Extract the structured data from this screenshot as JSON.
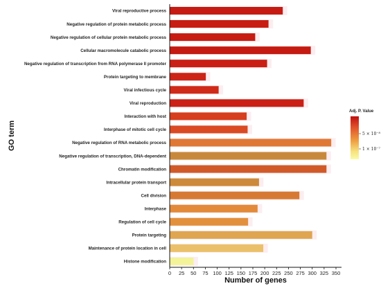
{
  "chart_data": {
    "type": "bar",
    "orientation": "horizontal",
    "title": "",
    "xlabel": "Number of genes",
    "ylabel": "GO term",
    "xlim": [
      0,
      350
    ],
    "xticks": [
      "0",
      "25",
      "50",
      "75",
      "100",
      "125",
      "150",
      "175",
      "200",
      "225",
      "250",
      "275",
      "300",
      "325",
      "350"
    ],
    "grid": false,
    "categories": [
      "Viral reproductive process",
      "Negative regulation of protein metabolic process",
      "Negative regulation of cellular protein metabolic process",
      "Cellular macromolecule catabolic process",
      "Negative regulation of transcription from RNA polymerase II promoter",
      "Protein targeting to membrane",
      "Viral infectious cycle",
      "Viral reproduction",
      "Interaction with host",
      "Interphase of mitotic cell cycle",
      "Negative regulation of RNA metabolic process",
      "Negative regulation of transcription, DNA-dependent",
      "Chromatin modification",
      "Intracellular protein transport",
      "Cell division",
      "Interphase",
      "Regulation of cell cycle",
      "Protein targeting",
      "Maintenance of protein location in cell",
      "Histone modification"
    ],
    "values": [
      238,
      208,
      180,
      297,
      205,
      76,
      103,
      282,
      162,
      164,
      340,
      330,
      330,
      188,
      273,
      185,
      165,
      300,
      197,
      50
    ],
    "bar_colors": [
      "#c51b12",
      "#c81d13",
      "#c61c12",
      "#c41a11",
      "#c91f14",
      "#cc2417",
      "#d02a19",
      "#ca2015",
      "#d63e1e",
      "#da4a23",
      "#df7834",
      "#c8883c",
      "#d05a28",
      "#cd8a3a",
      "#d67a33",
      "#e28a3a",
      "#e3903c",
      "#dfa550",
      "#ebc06a",
      "#f3f39a"
    ],
    "legend": {
      "title": "Adj. P. Value",
      "labels": [
        "5 × 10⁻⁸",
        "1 × 10⁻⁷"
      ],
      "position": "right",
      "colors": [
        "#bf1010",
        "#e0502a",
        "#ee9a3e",
        "#f6e37e",
        "#fafaa8"
      ]
    }
  }
}
